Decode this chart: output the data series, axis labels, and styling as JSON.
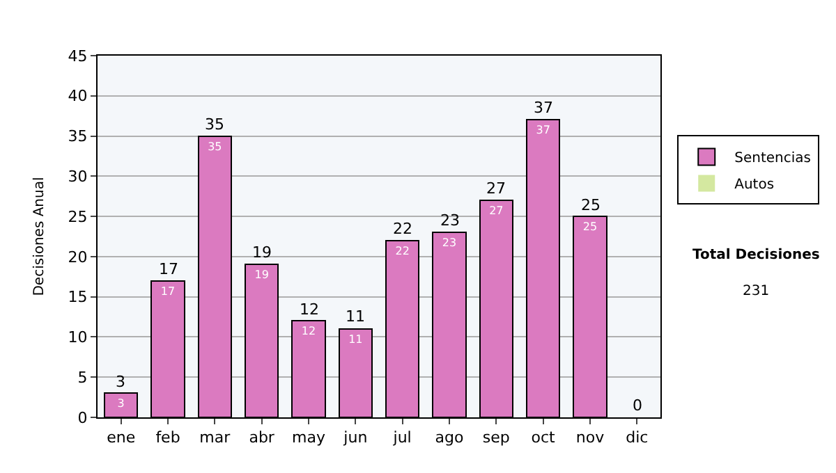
{
  "chart_data": {
    "type": "bar",
    "ylabel": "Decisiones Anual",
    "categories": [
      "ene",
      "feb",
      "mar",
      "abr",
      "may",
      "jun",
      "jul",
      "ago",
      "sep",
      "oct",
      "nov",
      "dic"
    ],
    "series": [
      {
        "name": "Sentencias",
        "color": "#db7ac0",
        "values": [
          3,
          17,
          35,
          19,
          12,
          11,
          22,
          23,
          27,
          37,
          25,
          0
        ],
        "value_labels": [
          "3",
          "17",
          "35",
          "19",
          "12",
          "11",
          "22",
          "23",
          "27",
          "37",
          "25",
          null
        ]
      },
      {
        "name": "Autos",
        "color": "#d4e8a0",
        "values": [
          0,
          0,
          0,
          0,
          0,
          0,
          0,
          0,
          0,
          0,
          0,
          0
        ]
      }
    ],
    "stacked": true,
    "totals": [
      "3",
      "17",
      "35",
      "19",
      "12",
      "11",
      "22",
      "23",
      "27",
      "37",
      "25",
      "0"
    ],
    "ylim": [
      0,
      45
    ],
    "yticks": [
      0,
      5,
      10,
      15,
      20,
      25,
      30,
      35,
      40,
      45
    ],
    "grid": "y",
    "legend": "right",
    "annotations": [
      "Total Decisiones",
      "231"
    ]
  }
}
